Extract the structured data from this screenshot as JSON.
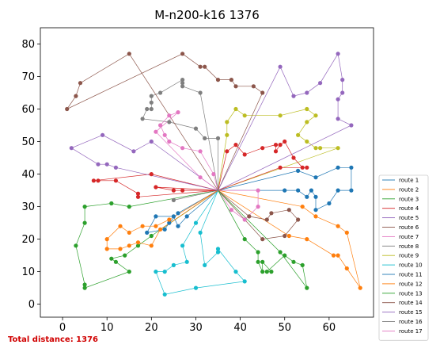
{
  "chart_data": {
    "type": "line",
    "title": "M-n200-k16 1376",
    "xlabel": "",
    "ylabel": "",
    "xlim": [
      -5,
      70
    ],
    "ylim": [
      -4,
      85
    ],
    "xticks": [
      0,
      10,
      20,
      30,
      40,
      50,
      60
    ],
    "yticks": [
      0,
      10,
      20,
      30,
      40,
      50,
      60,
      70,
      80
    ],
    "grid": false,
    "legend_position": "bottom-right",
    "depot": [
      35,
      35
    ],
    "series": [
      {
        "name": "route 1",
        "color": "#1f77b4",
        "points": [
          [
            35,
            35
          ],
          [
            50,
            35
          ],
          [
            53,
            35
          ],
          [
            55,
            33
          ],
          [
            56,
            35
          ],
          [
            57,
            33
          ],
          [
            57,
            29
          ],
          [
            60,
            31
          ],
          [
            62,
            35
          ],
          [
            65,
            35
          ],
          [
            65,
            42
          ],
          [
            62,
            42
          ],
          [
            57,
            39
          ],
          [
            53,
            41
          ],
          [
            35,
            35
          ]
        ]
      },
      {
        "name": "route 2",
        "color": "#ff7f0e",
        "points": [
          [
            35,
            35
          ],
          [
            51,
            21
          ],
          [
            55,
            20
          ],
          [
            61,
            15
          ],
          [
            62,
            15
          ],
          [
            64,
            11
          ],
          [
            67,
            5
          ],
          [
            64,
            22
          ],
          [
            62,
            24
          ],
          [
            57,
            27
          ],
          [
            54,
            30
          ],
          [
            35,
            35
          ]
        ]
      },
      {
        "name": "route 3",
        "color": "#2ca02c",
        "points": [
          [
            35,
            35
          ],
          [
            15,
            30
          ],
          [
            11,
            31
          ],
          [
            5,
            30
          ],
          [
            5,
            25
          ],
          [
            3,
            18
          ],
          [
            5,
            6
          ],
          [
            5,
            5
          ],
          [
            15,
            10
          ],
          [
            12,
            13
          ],
          [
            11,
            14
          ],
          [
            14,
            15
          ],
          [
            17,
            18
          ],
          [
            20,
            21
          ],
          [
            35,
            35
          ]
        ]
      },
      {
        "name": "route 4",
        "color": "#d62728",
        "points": [
          [
            35,
            35
          ],
          [
            21,
            36
          ],
          [
            25,
            35
          ],
          [
            27,
            35
          ],
          [
            35,
            35
          ],
          [
            17,
            33
          ],
          [
            17,
            34
          ],
          [
            12,
            38
          ],
          [
            8,
            38
          ],
          [
            7,
            38
          ],
          [
            20,
            40
          ],
          [
            35,
            35
          ]
        ]
      },
      {
        "name": "route 5",
        "color": "#9467bd",
        "points": [
          [
            35,
            35
          ],
          [
            20,
            50
          ],
          [
            16,
            47
          ],
          [
            9,
            52
          ],
          [
            2,
            48
          ],
          [
            8,
            43
          ],
          [
            10,
            43
          ],
          [
            12,
            42
          ],
          [
            35,
            35
          ]
        ]
      },
      {
        "name": "route 6",
        "color": "#8c564b",
        "points": [
          [
            35,
            35
          ],
          [
            42,
            27
          ],
          [
            46,
            26
          ],
          [
            47,
            28
          ],
          [
            51,
            29
          ],
          [
            53,
            26
          ],
          [
            50,
            21
          ],
          [
            45,
            20
          ],
          [
            35,
            35
          ]
        ]
      },
      {
        "name": "route 7",
        "color": "#e377c2",
        "points": [
          [
            35,
            35
          ],
          [
            44,
            35
          ],
          [
            44,
            30
          ],
          [
            41,
            26
          ],
          [
            38,
            29
          ],
          [
            35,
            35
          ]
        ]
      },
      {
        "name": "route 8",
        "color": "#7f7f7f",
        "points": [
          [
            35,
            35
          ],
          [
            35,
            51
          ],
          [
            32,
            51
          ],
          [
            30,
            54
          ],
          [
            24,
            56
          ],
          [
            18,
            57
          ],
          [
            19,
            60
          ],
          [
            20,
            60
          ],
          [
            20,
            62
          ],
          [
            20,
            64
          ],
          [
            22,
            65
          ],
          [
            27,
            69
          ],
          [
            27,
            68
          ],
          [
            27,
            67
          ],
          [
            31,
            65
          ],
          [
            35,
            35
          ]
        ]
      },
      {
        "name": "route 9",
        "color": "#bcbd22",
        "points": [
          [
            35,
            35
          ],
          [
            37,
            52
          ],
          [
            37,
            56
          ],
          [
            39,
            60
          ],
          [
            41,
            58
          ],
          [
            49,
            58
          ],
          [
            55,
            60
          ],
          [
            57,
            58
          ],
          [
            55,
            56
          ],
          [
            53,
            52
          ],
          [
            55,
            50
          ],
          [
            57,
            48
          ],
          [
            58,
            48
          ],
          [
            62,
            48
          ],
          [
            35,
            35
          ]
        ]
      },
      {
        "name": "route 10",
        "color": "#17becf",
        "points": [
          [
            35,
            35
          ],
          [
            30,
            25
          ],
          [
            27,
            18
          ],
          [
            28,
            13
          ],
          [
            25,
            12
          ],
          [
            23,
            10
          ],
          [
            21,
            10
          ],
          [
            23,
            3
          ],
          [
            30,
            5
          ],
          [
            41,
            7
          ],
          [
            39,
            10
          ],
          [
            35,
            17
          ],
          [
            35,
            16
          ],
          [
            32,
            12
          ],
          [
            31,
            22
          ],
          [
            35,
            35
          ]
        ]
      },
      {
        "name": "route 11",
        "color": "#1f77b4",
        "points": [
          [
            35,
            35
          ],
          [
            28,
            27
          ],
          [
            26,
            24
          ],
          [
            25,
            27
          ],
          [
            21,
            27
          ],
          [
            19,
            22
          ],
          [
            23,
            23
          ],
          [
            24,
            25
          ],
          [
            26,
            28
          ],
          [
            35,
            35
          ]
        ]
      },
      {
        "name": "route 12",
        "color": "#ff7f0e",
        "points": [
          [
            35,
            35
          ],
          [
            24,
            26
          ],
          [
            21,
            24
          ],
          [
            18,
            24
          ],
          [
            15,
            22
          ],
          [
            13,
            24
          ],
          [
            10,
            20
          ],
          [
            10,
            17
          ],
          [
            13,
            17
          ],
          [
            15,
            18
          ],
          [
            17,
            19
          ],
          [
            20,
            18
          ],
          [
            22,
            23
          ],
          [
            35,
            35
          ]
        ]
      },
      {
        "name": "route 13",
        "color": "#2ca02c",
        "points": [
          [
            35,
            35
          ],
          [
            41,
            20
          ],
          [
            44,
            16
          ],
          [
            44,
            13
          ],
          [
            45,
            10
          ],
          [
            45,
            13
          ],
          [
            47,
            10
          ],
          [
            46,
            10
          ],
          [
            50,
            15
          ],
          [
            52,
            13
          ],
          [
            54,
            12
          ],
          [
            55,
            5
          ],
          [
            49,
            16
          ],
          [
            35,
            35
          ]
        ]
      },
      {
        "name": "route 14",
        "color": "#8c564b",
        "points": [
          [
            35,
            35
          ],
          [
            15,
            77
          ],
          [
            4,
            68
          ],
          [
            3,
            64
          ],
          [
            1,
            60
          ],
          [
            27,
            77
          ],
          [
            31,
            73
          ],
          [
            32,
            73
          ],
          [
            35,
            69
          ],
          [
            38,
            69
          ],
          [
            39,
            67
          ],
          [
            43,
            67
          ],
          [
            45,
            65
          ],
          [
            35,
            35
          ]
        ]
      },
      {
        "name": "route 15",
        "color": "#9467bd",
        "points": [
          [
            35,
            35
          ],
          [
            49,
            73
          ],
          [
            52,
            64
          ],
          [
            55,
            65
          ],
          [
            58,
            68
          ],
          [
            62,
            77
          ],
          [
            63,
            69
          ],
          [
            63,
            65
          ],
          [
            62,
            63
          ],
          [
            62,
            57
          ],
          [
            65,
            55
          ],
          [
            35,
            35
          ]
        ]
      },
      {
        "name": "route 16",
        "color": "#7f7f7f",
        "points": [
          [
            35,
            35
          ],
          [
            25,
            32
          ],
          [
            35,
            35
          ]
        ]
      },
      {
        "name": "route 17",
        "color": "#e377c2",
        "points": [
          [
            35,
            35
          ],
          [
            34,
            40
          ],
          [
            31,
            47
          ],
          [
            27,
            48
          ],
          [
            24,
            50
          ],
          [
            23,
            52
          ],
          [
            22,
            55
          ],
          [
            24,
            58
          ],
          [
            26,
            59
          ],
          [
            21,
            53
          ],
          [
            31,
            39
          ],
          [
            35,
            35
          ]
        ]
      },
      {
        "name": "",
        "color": "#d62728",
        "points": [
          [
            35,
            35
          ],
          [
            37,
            47
          ],
          [
            39,
            49
          ],
          [
            41,
            46
          ],
          [
            45,
            48
          ],
          [
            48,
            49
          ],
          [
            48,
            47
          ],
          [
            49,
            49
          ],
          [
            50,
            50
          ],
          [
            52,
            45
          ],
          [
            54,
            42
          ],
          [
            55,
            42
          ],
          [
            49,
            42
          ],
          [
            35,
            35
          ]
        ]
      }
    ],
    "annotation": "Total distance: 1376"
  }
}
